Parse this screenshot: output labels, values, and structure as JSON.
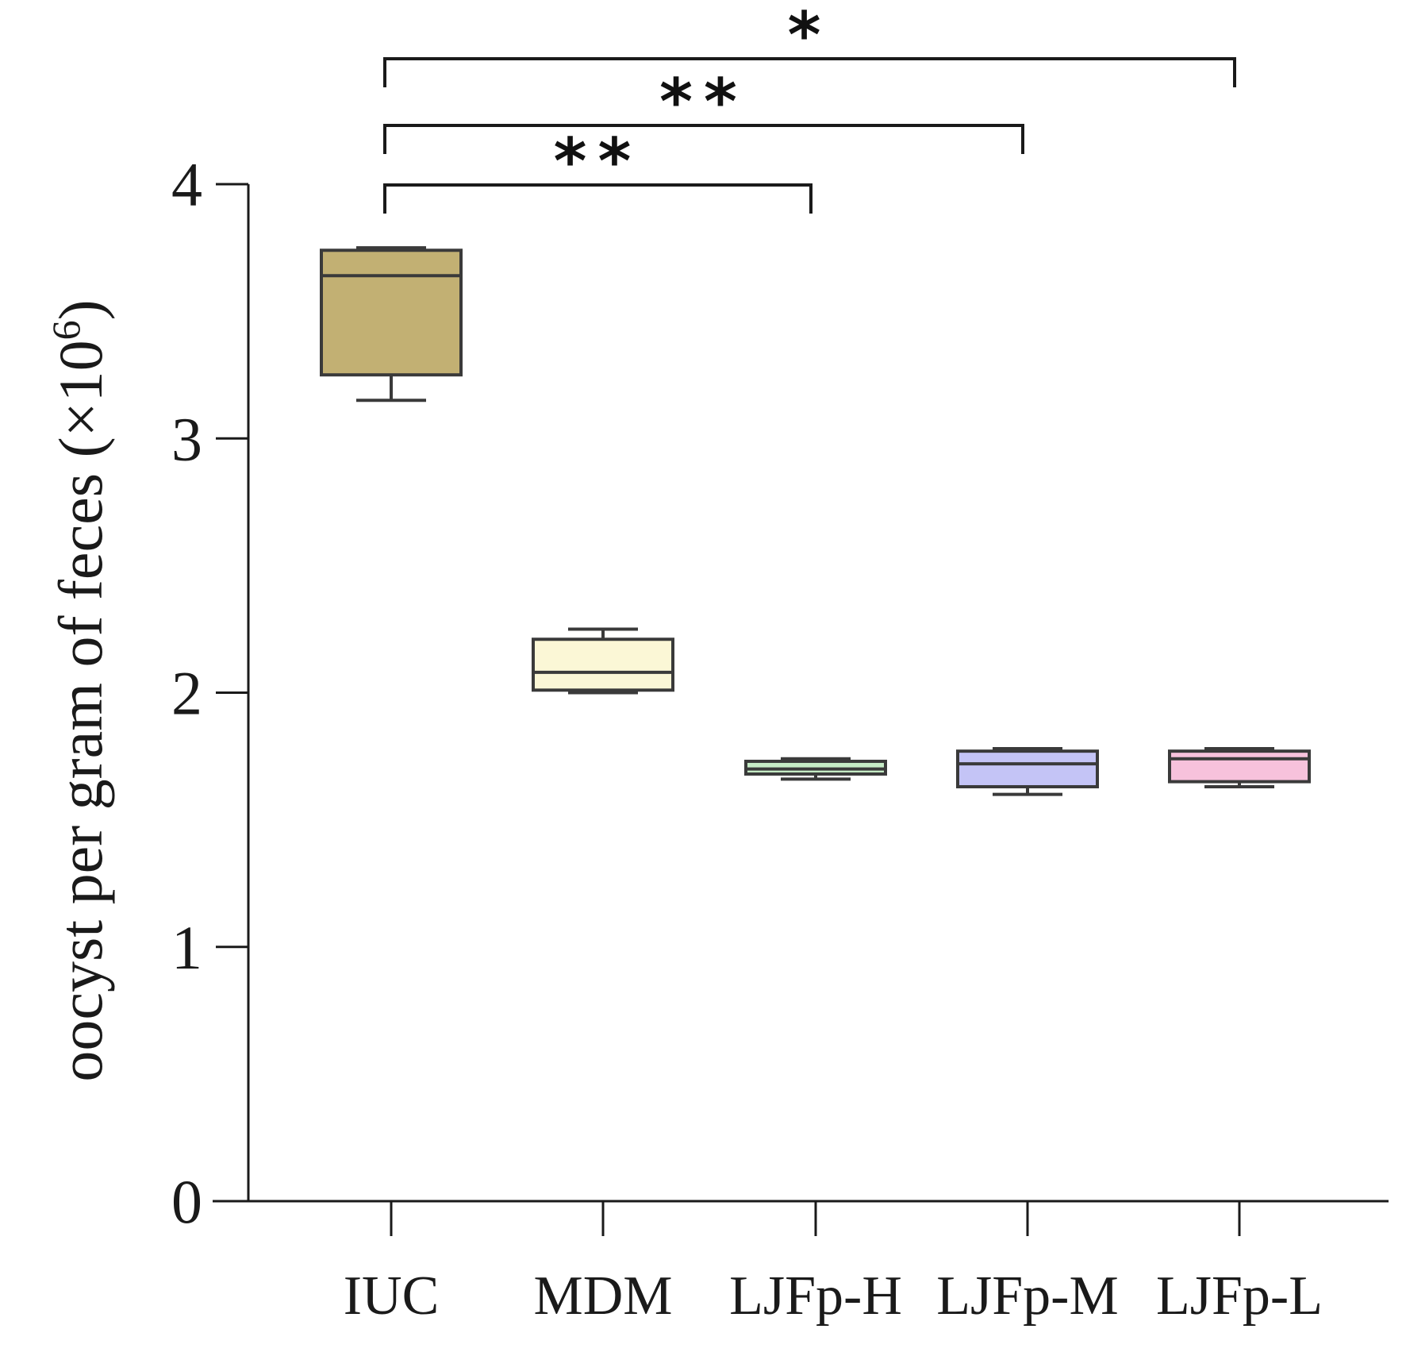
{
  "chart_data": {
    "type": "box",
    "ylabel": "oocyst per gram of feces (×10",
    "ylabel_exponent": "6",
    "ylabel_close": ")",
    "ylim": [
      0,
      4
    ],
    "yticks": [
      "0",
      "1",
      "2",
      "3",
      "4"
    ],
    "categories": [
      "IUC",
      "MDM",
      "LJFp-H",
      "LJFp-M",
      "LJFp-L"
    ],
    "boxes": [
      {
        "category": "IUC",
        "min": 3.15,
        "q1": 3.25,
        "median": 3.64,
        "q3": 3.74,
        "max": 3.75,
        "color": "#c2b073"
      },
      {
        "category": "MDM",
        "min": 2.0,
        "q1": 2.01,
        "median": 2.08,
        "q3": 2.21,
        "max": 2.25,
        "color": "#fbf7d6"
      },
      {
        "category": "LJFp-H",
        "min": 1.66,
        "q1": 1.68,
        "median": 1.7,
        "q3": 1.73,
        "max": 1.74,
        "color": "#c6ecc6"
      },
      {
        "category": "LJFp-M",
        "min": 1.6,
        "q1": 1.63,
        "median": 1.72,
        "q3": 1.77,
        "max": 1.78,
        "color": "#c4c4f6"
      },
      {
        "category": "LJFp-L",
        "min": 1.63,
        "q1": 1.65,
        "median": 1.74,
        "q3": 1.77,
        "max": 1.78,
        "color": "#f7c2dc"
      }
    ],
    "significance": [
      {
        "from": "IUC",
        "to": "LJFp-H",
        "label": "**"
      },
      {
        "from": "IUC",
        "to": "LJFp-M",
        "label": "**"
      },
      {
        "from": "IUC",
        "to": "LJFp-L",
        "label": "*"
      }
    ],
    "grid": false,
    "legend": "none"
  }
}
